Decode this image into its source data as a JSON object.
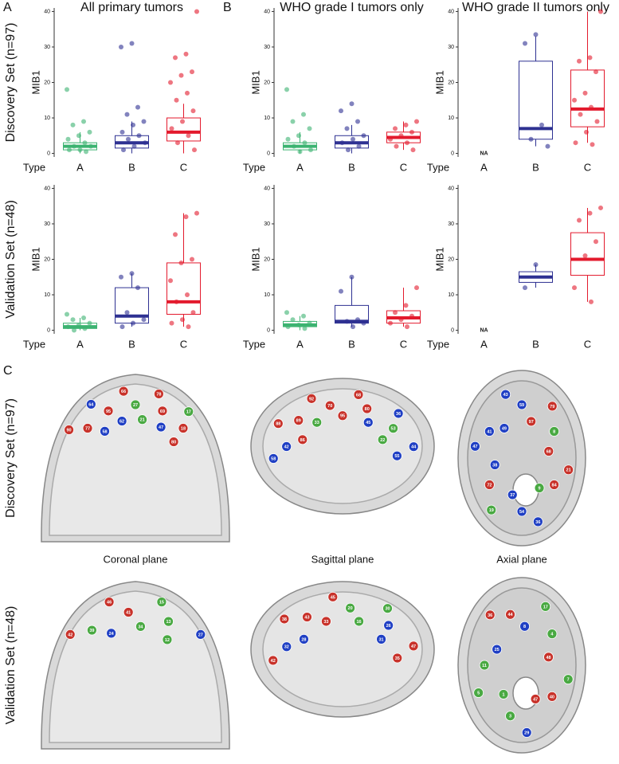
{
  "chart_data": [
    {
      "type": "box",
      "panel": "A",
      "title": "All primary tumors",
      "row_label": "Discovery Set (n=97)",
      "ylabel": "MIB1",
      "xlabel": "Type",
      "categories": [
        "A",
        "B",
        "C"
      ],
      "colors": [
        "#3cb371",
        "#2e3192",
        "#e31a2d"
      ],
      "ylim": [
        -1,
        41
      ],
      "yticks": [
        0,
        10,
        20,
        30,
        40
      ],
      "boxes": [
        {
          "q1": 1,
          "median": 2,
          "q3": 3,
          "whisker_low": 0,
          "whisker_high": 6,
          "points": [
            18,
            9,
            8,
            6,
            5,
            4,
            3,
            2,
            2,
            1,
            1,
            0.5
          ]
        },
        {
          "q1": 1.5,
          "median": 3,
          "q3": 5,
          "whisker_low": 0,
          "whisker_high": 9,
          "points": [
            31,
            30,
            13,
            11,
            9,
            8,
            6,
            5,
            4,
            3,
            2,
            1
          ]
        },
        {
          "q1": 3.5,
          "median": 6,
          "q3": 10,
          "whisker_low": 0,
          "whisker_high": 14,
          "points": [
            40,
            28,
            27,
            23,
            22,
            20,
            17,
            15,
            12,
            9,
            7,
            5,
            3,
            1
          ]
        }
      ]
    },
    {
      "type": "box",
      "panel": "B",
      "title": "WHO grade I tumors only",
      "ylabel": "MIB1",
      "xlabel": "Type",
      "categories": [
        "A",
        "B",
        "C"
      ],
      "colors": [
        "#3cb371",
        "#2e3192",
        "#e31a2d"
      ],
      "ylim": [
        -1,
        41
      ],
      "yticks": [
        0,
        10,
        20,
        30,
        40
      ],
      "boxes": [
        {
          "q1": 1,
          "median": 2,
          "q3": 3,
          "whisker_low": 0,
          "whisker_high": 6,
          "points": [
            18,
            11,
            9,
            7,
            5,
            4,
            3,
            2,
            1,
            0.5
          ]
        },
        {
          "q1": 1.5,
          "median": 3,
          "q3": 5,
          "whisker_low": 0,
          "whisker_high": 8,
          "points": [
            14,
            12,
            9,
            7,
            5,
            4,
            3,
            2,
            1
          ]
        },
        {
          "q1": 3,
          "median": 4.5,
          "q3": 6,
          "whisker_low": 1,
          "whisker_high": 9,
          "points": [
            9,
            8,
            7,
            6,
            5,
            4,
            3,
            2,
            1
          ]
        }
      ]
    },
    {
      "type": "box",
      "title": "WHO grade II tumors only",
      "ylabel": "MIB1",
      "xlabel": "Type",
      "na_label": "NA",
      "categories": [
        "A",
        "B",
        "C"
      ],
      "colors": [
        "#3cb371",
        "#2e3192",
        "#e31a2d"
      ],
      "ylim": [
        -1,
        41
      ],
      "yticks": [
        0,
        10,
        20,
        30,
        40
      ],
      "boxes": [
        null,
        {
          "q1": 4,
          "median": 7,
          "q3": 26,
          "whisker_low": 2,
          "whisker_high": 33,
          "points": [
            33.5,
            31,
            8,
            4,
            2
          ]
        },
        {
          "q1": 7.5,
          "median": 12.5,
          "q3": 23.5,
          "whisker_low": 3,
          "whisker_high": 40,
          "points": [
            40,
            27,
            26,
            23,
            17,
            15,
            13,
            11,
            9,
            6,
            3,
            2.5
          ]
        }
      ]
    },
    {
      "type": "box",
      "row_label": "Validation Set (n=48)",
      "ylabel": "MIB1",
      "xlabel": "Type",
      "categories": [
        "A",
        "B",
        "C"
      ],
      "colors": [
        "#3cb371",
        "#2e3192",
        "#e31a2d"
      ],
      "ylim": [
        -1,
        41
      ],
      "yticks": [
        0,
        10,
        20,
        30,
        40
      ],
      "boxes": [
        {
          "q1": 0.5,
          "median": 1,
          "q3": 2,
          "whisker_low": 0,
          "whisker_high": 3.5,
          "points": [
            4.5,
            3.5,
            3,
            2,
            1.5,
            1,
            0.5,
            0
          ]
        },
        {
          "q1": 2,
          "median": 4,
          "q3": 12,
          "whisker_low": 1,
          "whisker_high": 16,
          "points": [
            16,
            15,
            12,
            5,
            3,
            2,
            1
          ]
        },
        {
          "q1": 4.5,
          "median": 8,
          "q3": 19,
          "whisker_low": 1,
          "whisker_high": 33,
          "points": [
            33,
            32,
            27,
            20,
            19,
            14,
            10,
            8,
            5,
            3,
            2,
            1
          ]
        }
      ]
    },
    {
      "type": "box",
      "ylabel": "MIB1",
      "xlabel": "Type",
      "categories": [
        "A",
        "B",
        "C"
      ],
      "colors": [
        "#3cb371",
        "#2e3192",
        "#e31a2d"
      ],
      "ylim": [
        -1,
        41
      ],
      "yticks": [
        0,
        10,
        20,
        30,
        40
      ],
      "boxes": [
        {
          "q1": 1,
          "median": 1.5,
          "q3": 2.5,
          "whisker_low": 0,
          "whisker_high": 4,
          "points": [
            5,
            4,
            3,
            2,
            1.5,
            1,
            0.5
          ]
        },
        {
          "q1": 2,
          "median": 2.5,
          "q3": 7,
          "whisker_low": 1,
          "whisker_high": 15,
          "points": [
            15,
            11,
            3,
            2.5,
            2,
            1
          ]
        },
        {
          "q1": 2,
          "median": 3.5,
          "q3": 5.5,
          "whisker_low": 1,
          "whisker_high": 12,
          "points": [
            12,
            7,
            5,
            4,
            3,
            2,
            1
          ]
        }
      ]
    },
    {
      "type": "box",
      "ylabel": "MIB1",
      "xlabel": "Type",
      "na_label": "NA",
      "categories": [
        "A",
        "B",
        "C"
      ],
      "colors": [
        "#3cb371",
        "#2e3192",
        "#e31a2d"
      ],
      "ylim": [
        -1,
        41
      ],
      "yticks": [
        0,
        10,
        20,
        30,
        40
      ],
      "boxes": [
        null,
        {
          "q1": 13.5,
          "median": 15,
          "q3": 16.5,
          "whisker_low": 12,
          "whisker_high": 18.5,
          "points": [
            18.5,
            12
          ]
        },
        {
          "q1": 15.5,
          "median": 20,
          "q3": 27.5,
          "whisker_low": 8,
          "whisker_high": 34.5,
          "points": [
            34.5,
            33,
            31,
            25,
            21,
            12,
            8
          ]
        }
      ]
    }
  ],
  "brain_maps": {
    "panel": "C",
    "row_labels": [
      "Discovery Set (n=97)",
      "Validation Set (n=48)"
    ],
    "plane_labels": [
      "Coronal plane",
      "Sagittal plane",
      "Axial plane"
    ],
    "type_colors": {
      "A": "#49a942",
      "B": "#1f3fc4",
      "C": "#c8322a"
    },
    "maps": [
      {
        "markers": [
          [
            "90",
            "C"
          ],
          [
            "77",
            "C"
          ],
          [
            "58",
            "B"
          ],
          [
            "64",
            "B"
          ],
          [
            "95",
            "C"
          ],
          [
            "62",
            "B"
          ],
          [
            "66",
            "C"
          ],
          [
            "27",
            "A"
          ],
          [
            "21",
            "A"
          ],
          [
            "78",
            "C"
          ],
          [
            "69",
            "C"
          ],
          [
            "47",
            "B"
          ],
          [
            "17",
            "A"
          ],
          [
            "18",
            "C"
          ],
          [
            "80",
            "C"
          ]
        ]
      },
      {
        "markers": [
          [
            "58",
            "B"
          ],
          [
            "42",
            "B"
          ],
          [
            "86",
            "C"
          ],
          [
            "88",
            "C"
          ],
          [
            "89",
            "C"
          ],
          [
            "33",
            "A"
          ],
          [
            "92",
            "C"
          ],
          [
            "70",
            "C"
          ],
          [
            "95",
            "C"
          ],
          [
            "68",
            "C"
          ],
          [
            "80",
            "C"
          ],
          [
            "45",
            "B"
          ],
          [
            "36",
            "B"
          ],
          [
            "53",
            "A"
          ],
          [
            "22",
            "A"
          ],
          [
            "44",
            "B"
          ],
          [
            "55",
            "B"
          ]
        ]
      },
      {
        "markers": [
          [
            "21",
            "C"
          ],
          [
            "84",
            "C"
          ],
          [
            "9",
            "A"
          ],
          [
            "36",
            "B"
          ],
          [
            "54",
            "B"
          ],
          [
            "37",
            "B"
          ],
          [
            "19",
            "A"
          ],
          [
            "72",
            "C"
          ],
          [
            "38",
            "B"
          ],
          [
            "47",
            "B"
          ],
          [
            "41",
            "B"
          ],
          [
            "49",
            "B"
          ],
          [
            "43",
            "B"
          ],
          [
            "59",
            "B"
          ],
          [
            "97",
            "C"
          ],
          [
            "79",
            "C"
          ],
          [
            "8",
            "A"
          ],
          [
            "68",
            "C"
          ]
        ]
      },
      {
        "markers": [
          [
            "42",
            "C"
          ],
          [
            "39",
            "A"
          ],
          [
            "24",
            "B"
          ],
          [
            "46",
            "C"
          ],
          [
            "41",
            "C"
          ],
          [
            "34",
            "A"
          ],
          [
            "15",
            "A"
          ],
          [
            "13",
            "A"
          ],
          [
            "12",
            "A"
          ],
          [
            "27",
            "B"
          ]
        ]
      },
      {
        "markers": [
          [
            "42",
            "C"
          ],
          [
            "32",
            "B"
          ],
          [
            "28",
            "B"
          ],
          [
            "38",
            "C"
          ],
          [
            "43",
            "C"
          ],
          [
            "33",
            "C"
          ],
          [
            "45",
            "C"
          ],
          [
            "20",
            "A"
          ],
          [
            "16",
            "A"
          ],
          [
            "30",
            "A"
          ],
          [
            "26",
            "B"
          ],
          [
            "31",
            "B"
          ],
          [
            "47",
            "C"
          ],
          [
            "35",
            "C"
          ]
        ]
      },
      {
        "markers": [
          [
            "7",
            "A"
          ],
          [
            "40",
            "C"
          ],
          [
            "47",
            "C"
          ],
          [
            "29",
            "B"
          ],
          [
            "3",
            "A"
          ],
          [
            "1",
            "A"
          ],
          [
            "5",
            "A"
          ],
          [
            "11",
            "A"
          ],
          [
            "25",
            "B"
          ],
          [
            "36",
            "C"
          ],
          [
            "44",
            "C"
          ],
          [
            "8",
            "B"
          ],
          [
            "17",
            "A"
          ],
          [
            "4",
            "A"
          ],
          [
            "48",
            "C"
          ]
        ]
      }
    ]
  }
}
